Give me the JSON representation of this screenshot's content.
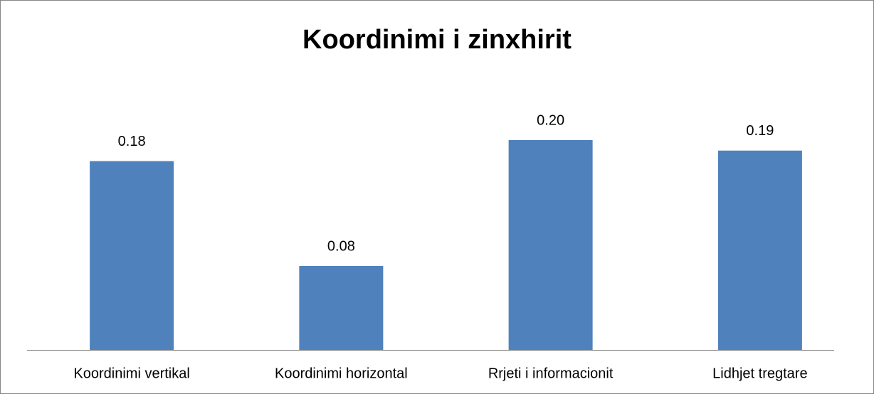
{
  "chart_data": {
    "type": "bar",
    "title": "Koordinimi i zinxhirit",
    "categories": [
      "Koordinimi vertikal",
      "Koordinimi horizontal",
      "Rrjeti i informacionit",
      "Lidhjet tregtare"
    ],
    "values": [
      0.18,
      0.08,
      0.2,
      0.19
    ],
    "value_labels": [
      "0.18",
      "0.08",
      "0.20",
      "0.19"
    ],
    "color": "#4f81bd"
  }
}
